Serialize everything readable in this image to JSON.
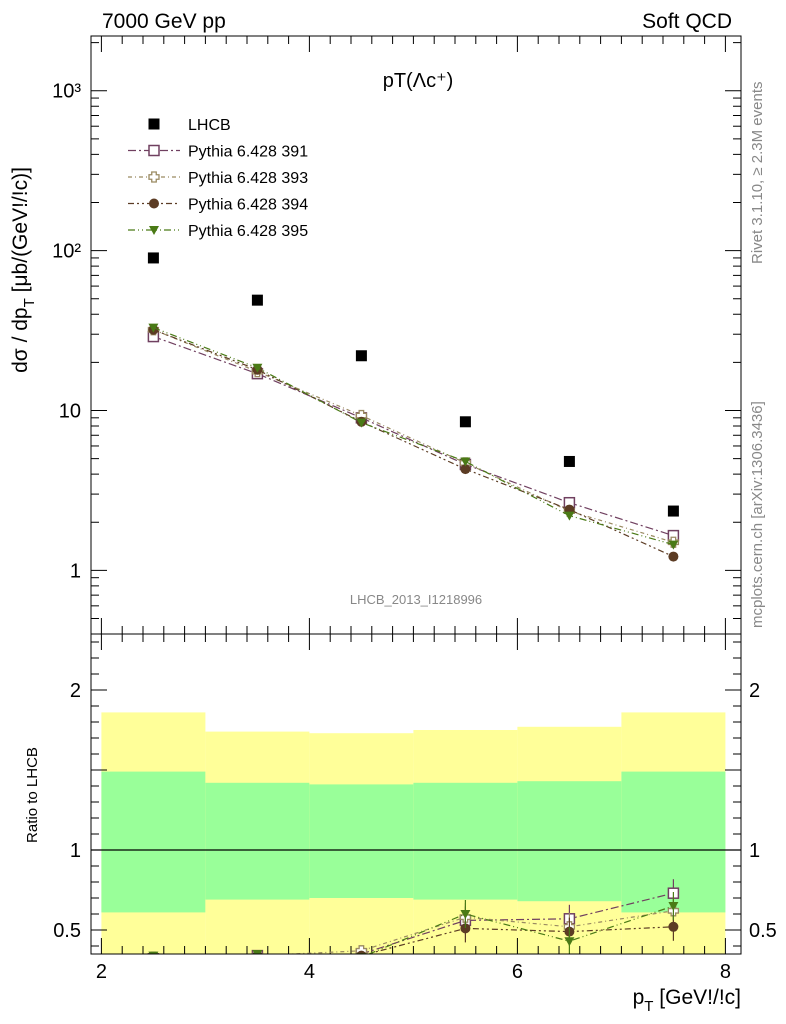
{
  "header": {
    "left": "7000 GeV pp",
    "right": "Soft QCD"
  },
  "side_text": {
    "rivet": "Rivet 3.1.10, ≥ 2.3M events",
    "mcplots": "mcplots.cern.ch [arXiv:1306.3436]"
  },
  "analysis_id": "LHCB_2013_I1218996",
  "chart_data": [
    {
      "type": "scatter",
      "title": "pT(Λc⁺)",
      "ylabel": "dσ / dp_T [μb/(GeV!/!c)]",
      "ylabel_main": "dσ / dp",
      "ylabel_sub": "T",
      "ylabel_tail": " [μb/(GeV!/!c)]",
      "yscale": "log",
      "xlim": [
        1.9,
        8.15
      ],
      "ylim": [
        0.4,
        2200
      ],
      "y_tick_labels": [
        "1",
        "10",
        "10²",
        "10³"
      ],
      "legend_position": "top-left",
      "x": [
        2.5,
        3.5,
        4.5,
        5.5,
        6.5,
        7.5
      ],
      "series": [
        {
          "name": "LHCB",
          "color": "#000000",
          "marker": "filled-square",
          "values": [
            90,
            49,
            22,
            8.5,
            4.8,
            2.35
          ]
        },
        {
          "name": "Pythia 6.428 391",
          "color": "#704060",
          "marker": "open-square",
          "values": [
            29,
            17,
            9.0,
            4.6,
            2.65,
            1.65
          ]
        },
        {
          "name": "Pythia 6.428 393",
          "color": "#9a8a62",
          "marker": "open-cross",
          "values": [
            32,
            17.5,
            9.3,
            4.7,
            2.35,
            1.5
          ]
        },
        {
          "name": "Pythia 6.428 394",
          "color": "#5c3c24",
          "marker": "filled-circle",
          "values": [
            32,
            18,
            8.5,
            4.3,
            2.4,
            1.22
          ]
        },
        {
          "name": "Pythia 6.428 395",
          "color": "#4a7a16",
          "marker": "filled-triangle-down",
          "values": [
            33,
            18.5,
            8.4,
            4.8,
            2.2,
            1.45
          ]
        }
      ]
    },
    {
      "type": "line",
      "ylabel": "Ratio to LHCB",
      "xlabel": "p_T [GeV!/!c]",
      "xlabel_main": "p",
      "xlabel_sub": "T",
      "xlabel_tail": " [GeV!/!c]",
      "xlim": [
        1.9,
        8.15
      ],
      "ylim": [
        0.35,
        2.35
      ],
      "x_tick_labels": [
        "2",
        "4",
        "6",
        "8"
      ],
      "y_tick_labels": [
        "0.5",
        "1",
        "2"
      ],
      "bands": {
        "edges": [
          2,
          3,
          4,
          5,
          6,
          7,
          8
        ],
        "yellow_low": [
          0.35,
          0.35,
          0.35,
          0.35,
          0.35,
          0.35
        ],
        "yellow_high": [
          1.86,
          1.74,
          1.73,
          1.75,
          1.77,
          1.86
        ],
        "green_low": [
          0.61,
          0.69,
          0.7,
          0.69,
          0.68,
          0.61
        ],
        "green_high": [
          1.49,
          1.42,
          1.41,
          1.42,
          1.43,
          1.49
        ],
        "yellow_color": "#ffff99",
        "green_color": "#99ff99"
      },
      "x": [
        2.5,
        3.5,
        4.5,
        5.5,
        6.5,
        7.5
      ],
      "series": [
        {
          "name": "Pythia 6.428 391",
          "color": "#704060",
          "values": [
            0.32,
            0.34,
            0.35,
            0.56,
            0.57,
            0.73
          ]
        },
        {
          "name": "Pythia 6.428 393",
          "color": "#9a8a62",
          "values": [
            0.33,
            0.34,
            0.37,
            0.58,
            0.52,
            0.62
          ]
        },
        {
          "name": "Pythia 6.428 394",
          "color": "#5c3c24",
          "values": [
            0.33,
            0.34,
            0.34,
            0.51,
            0.49,
            0.52
          ]
        },
        {
          "name": "Pythia 6.428 395",
          "color": "#4a7a16",
          "values": [
            0.34,
            0.35,
            0.33,
            0.6,
            0.43,
            0.65
          ]
        }
      ]
    }
  ]
}
